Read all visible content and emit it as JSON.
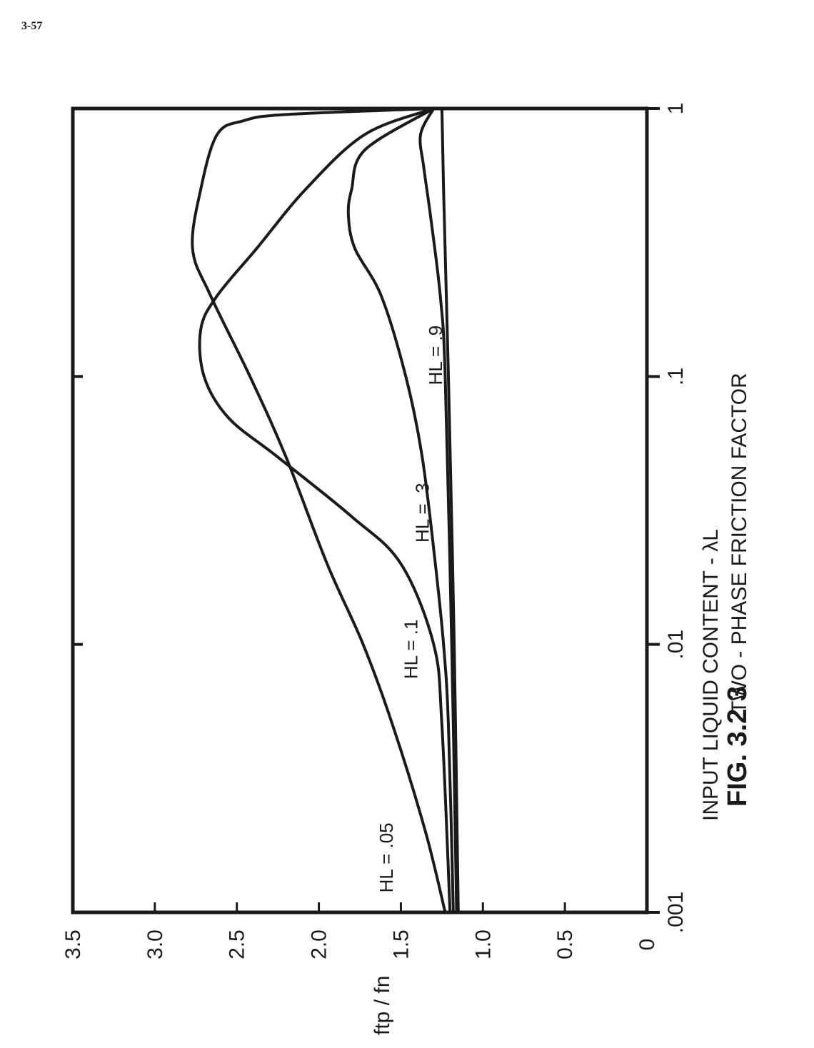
{
  "page_number": "3-57",
  "chart_data": {
    "type": "line",
    "title": "FIG. 3.2 3",
    "xlabel_lines": [
      "INPUT  LIQUID  CONTENT - λL",
      "TWO - PHASE  FRICTION  FACTOR"
    ],
    "ylabel": "ftp / fn",
    "x_scale": "log",
    "xlim": [
      0.001,
      1
    ],
    "ylim": [
      0,
      3.5
    ],
    "x_tick_labels": [
      ".001",
      ".01",
      ".1",
      "1"
    ],
    "x_ticks": [
      0.001,
      0.01,
      0.1,
      1
    ],
    "y_tick_labels": [
      "0",
      "0.5",
      "1.0",
      "1.5",
      "2.0",
      "2.5",
      "3.0",
      "3.5"
    ],
    "y_ticks": [
      0,
      0.5,
      1.0,
      1.5,
      2.0,
      2.5,
      3.0,
      3.5
    ],
    "grid": false,
    "series": [
      {
        "name": "HL = .05",
        "label_at": [
          0.0016,
          1.55
        ],
        "color": "#1a1a1a",
        "x": [
          0.001,
          0.002,
          0.005,
          0.01,
          0.02,
          0.05,
          0.1,
          0.2,
          0.3,
          0.5,
          0.8,
          0.9,
          0.95,
          1.0
        ],
        "y": [
          1.23,
          1.35,
          1.55,
          1.73,
          1.95,
          2.2,
          2.42,
          2.66,
          2.77,
          2.72,
          2.62,
          2.46,
          2.2,
          1.3
        ]
      },
      {
        "name": "HL = .1",
        "label_at": [
          0.0096,
          1.4
        ],
        "color": "#1a1a1a",
        "x": [
          0.001,
          0.005,
          0.01,
          0.02,
          0.03,
          0.05,
          0.07,
          0.1,
          0.15,
          0.2,
          0.3,
          0.5,
          0.8,
          1.0
        ],
        "y": [
          1.2,
          1.25,
          1.3,
          1.5,
          1.8,
          2.25,
          2.55,
          2.7,
          2.72,
          2.62,
          2.38,
          2.08,
          1.72,
          1.3
        ]
      },
      {
        "name": "HL = .3",
        "label_at": [
          0.031,
          1.33
        ],
        "color": "#1a1a1a",
        "x": [
          0.001,
          0.005,
          0.01,
          0.02,
          0.05,
          0.1,
          0.2,
          0.3,
          0.4,
          0.5,
          0.7,
          1.0
        ],
        "y": [
          1.18,
          1.21,
          1.24,
          1.29,
          1.37,
          1.47,
          1.62,
          1.78,
          1.82,
          1.8,
          1.72,
          1.3
        ]
      },
      {
        "name": "HL = .9",
        "label_at": [
          0.12,
          1.25
        ],
        "color": "#1a1a1a",
        "x": [
          0.001,
          0.01,
          0.1,
          0.2,
          0.4,
          0.6,
          0.8,
          1.0
        ],
        "y": [
          1.16,
          1.19,
          1.23,
          1.26,
          1.32,
          1.36,
          1.38,
          1.3
        ]
      },
      {
        "name": "",
        "color": "#1a1a1a",
        "x": [
          0.001,
          0.01,
          0.1,
          0.5,
          1.0
        ],
        "y": [
          1.15,
          1.175,
          1.21,
          1.24,
          1.25
        ]
      }
    ]
  }
}
